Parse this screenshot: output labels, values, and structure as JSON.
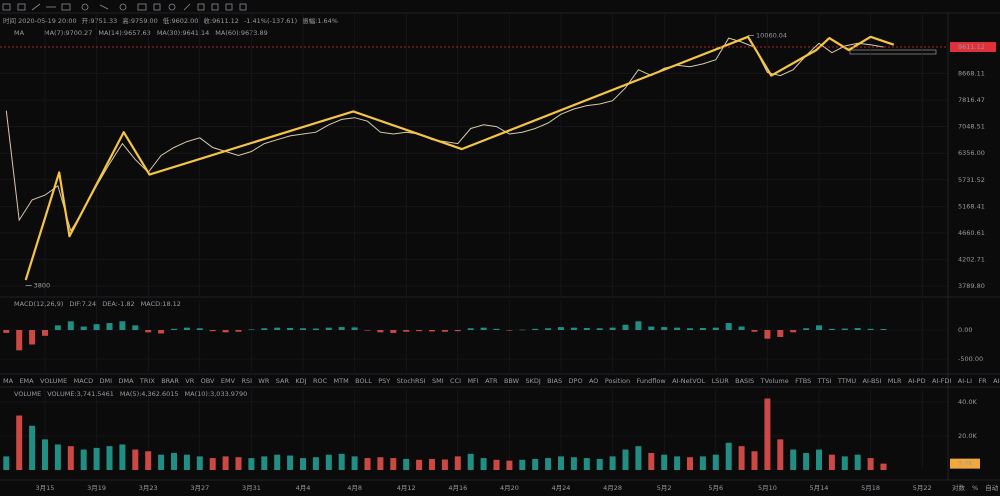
{
  "header": {
    "info": [
      "时间 2020-05-19 20:00",
      "开:9751.33",
      "高:9759.00",
      "低:9602.00",
      "收:9611.12",
      "-1.41%(-137.61)",
      "振幅:1.64%"
    ],
    "ma_label": "MA",
    "ma_values": [
      {
        "text": "MA(7):9700.27",
        "color": "#e8e8e8"
      },
      {
        "text": "MA(14):9657.63",
        "color": "#f2c94c"
      },
      {
        "text": "MA(30):9641.14",
        "color": "#e05a8a"
      },
      {
        "text": "MA(60):9673.89",
        "color": "#3fb8a8"
      }
    ]
  },
  "chart_data": [
    {
      "type": "line",
      "log": true,
      "grid": true,
      "color": "#d8c9a8",
      "categories": [
        null,
        null,
        null,
        "3月15",
        null,
        null,
        null,
        "3月19",
        null,
        null,
        null,
        "3月23",
        null,
        null,
        null,
        "3月27",
        null,
        null,
        null,
        "3月31",
        null,
        null,
        null,
        "4月4",
        null,
        null,
        null,
        "4月8",
        null,
        null,
        null,
        "4月12",
        null,
        null,
        null,
        "4月16",
        null,
        null,
        null,
        "4月20",
        null,
        null,
        null,
        "4月24",
        null,
        null,
        null,
        "4月28",
        null,
        null,
        null,
        "5月2",
        null,
        null,
        null,
        "5月6",
        null,
        null,
        null,
        "5月10",
        null,
        null,
        null,
        "5月14",
        null,
        null,
        null,
        "5月18",
        null,
        null,
        null,
        "5月22"
      ],
      "values": [
        7500,
        4900,
        5300,
        5400,
        5600,
        4700,
        5100,
        5600,
        6100,
        6600,
        6200,
        5900,
        6300,
        6500,
        6650,
        6750,
        6500,
        6400,
        6300,
        6400,
        6600,
        6700,
        6800,
        6850,
        6900,
        7100,
        7250,
        7300,
        7200,
        6900,
        6850,
        6900,
        6850,
        6700,
        6650,
        6600,
        7000,
        7100,
        7050,
        6850,
        6900,
        7000,
        7150,
        7400,
        7550,
        7650,
        7700,
        7800,
        8200,
        8800,
        8600,
        8850,
        8950,
        8900,
        9000,
        9150,
        9950,
        9800,
        9600,
        8700,
        8600,
        8800,
        9300,
        9750,
        9400,
        9650,
        9750,
        9700,
        9611.12,
        null,
        null,
        null
      ],
      "ylim": [
        3646,
        10930
      ],
      "yticks": [
        8668.11,
        7816.47,
        7048.51,
        {
          "value": 6356.0,
          "label": "6356.00"
        },
        5731.52,
        5168.41,
        4660.61,
        4202.71,
        {
          "value": 3789.8,
          "label": "3789.80"
        }
      ],
      "last_price": 9611.12,
      "last_color": "#e0303a",
      "annotations": [
        {
          "value": 10060.04,
          "x": 57.5
        },
        {
          "value": 3800,
          "x": 1.5
        }
      ],
      "zigzag": {
        "color": "#f5c542",
        "points": [
          {
            "x": 1.5,
            "y": 3880
          },
          {
            "x": 4.1,
            "y": 5900
          },
          {
            "x": 4.9,
            "y": 4600
          },
          {
            "x": 9.1,
            "y": 6900
          },
          {
            "x": 11.1,
            "y": 5850
          },
          {
            "x": 26.9,
            "y": 7480
          },
          {
            "x": 35.3,
            "y": 6460
          },
          {
            "x": 57.5,
            "y": 10000
          },
          {
            "x": 59.3,
            "y": 8600
          },
          {
            "x": 62.8,
            "y": 9500
          },
          {
            "x": 63.8,
            "y": 9950
          },
          {
            "x": 65.3,
            "y": 9500
          },
          {
            "x": 67,
            "y": 10000
          },
          {
            "x": 68.8,
            "y": 9700
          }
        ]
      }
    },
    {
      "type": "bar",
      "grid": true,
      "legend": [
        {
          "text": "MACD(12,26,9)",
          "color": "#9a9aa0"
        },
        {
          "text": "DIF:7.24",
          "color": "#e8e8e8"
        },
        {
          "text": "DEA:-1.82",
          "color": "#f2c94c"
        },
        {
          "text": "MACD:18.12",
          "color": "#e05a8a"
        }
      ],
      "values": [
        -50,
        -350,
        -250,
        -100,
        80,
        150,
        60,
        100,
        120,
        150,
        80,
        -40,
        -60,
        20,
        40,
        30,
        -20,
        -40,
        -30,
        10,
        30,
        40,
        35,
        30,
        25,
        40,
        50,
        45,
        -10,
        -40,
        -50,
        -30,
        -20,
        -25,
        -30,
        -20,
        30,
        40,
        20,
        -10,
        5,
        20,
        30,
        50,
        40,
        35,
        30,
        40,
        90,
        150,
        60,
        50,
        40,
        30,
        35,
        40,
        120,
        60,
        -30,
        -150,
        -120,
        -40,
        30,
        80,
        20,
        25,
        35,
        20,
        18.12,
        null,
        null,
        null
      ],
      "up_color": "#26a69a",
      "down_color": "#ef5350",
      "ylim": [
        -724,
        517
      ],
      "yticks": [
        {
          "value": 0,
          "label": "0.00"
        },
        {
          "value": -500,
          "label": "-500.00"
        }
      ]
    },
    {
      "type": "bar",
      "grid": true,
      "legend": [
        {
          "text": "VOLUME",
          "color": "#9a9aa0"
        },
        {
          "text": "VOLUME:3,741.5461",
          "color": "#e8e8e8"
        },
        {
          "text": "MA(5):4,362.6015",
          "color": "#e05a8a"
        },
        {
          "text": "MA(10):3,033.9790",
          "color": "#f2c94c"
        }
      ],
      "values": [
        8000,
        32000,
        26000,
        18000,
        15000,
        14000,
        12000,
        13000,
        14000,
        15000,
        12000,
        11000,
        9000,
        10000,
        9000,
        8000,
        7000,
        8000,
        7500,
        7000,
        8000,
        9000,
        8500,
        7000,
        7500,
        9000,
        9500,
        8000,
        7000,
        7500,
        7000,
        6500,
        6000,
        6500,
        6200,
        8000,
        9500,
        7000,
        6000,
        5500,
        6000,
        6500,
        7000,
        8000,
        7500,
        7000,
        6500,
        8000,
        12000,
        14000,
        10000,
        9000,
        8000,
        7500,
        8000,
        9000,
        16000,
        14000,
        11000,
        42000,
        18000,
        12000,
        10000,
        12000,
        9000,
        8000,
        9000,
        7000,
        3741.5461,
        null,
        null,
        null
      ],
      "up_color": "#26a69a",
      "down_color": "#ef5350",
      "last_value_label": "3.7K",
      "last_color": "#f2a93b",
      "ylim": [
        0,
        47000
      ],
      "yticks": [
        {
          "value": 40000,
          "label": "40.0K"
        },
        {
          "value": 20000,
          "label": "20.0K"
        }
      ]
    }
  ],
  "tabs": [
    "MA",
    "EMA",
    "VOLUME",
    "MACD",
    "DMI",
    "DMA",
    "TRIX",
    "BRAR",
    "VR",
    "OBV",
    "EMV",
    "RSI",
    "WR",
    "SAR",
    "KDJ",
    "ROC",
    "MTM",
    "BOLL",
    "PSY",
    "StochRSI",
    "SMI",
    "CCI",
    "MFI",
    "ATR",
    "BBW",
    "SKDJ",
    "BIAS",
    "DPO",
    "AO",
    "Position",
    "Fundflow",
    "AI-NetVOL",
    "LSUR",
    "BASIS",
    "TVolume",
    "FTBS",
    "TTSI",
    "TTMU",
    "AI-BSI",
    "MLR",
    "AI-PD",
    "AI-FDI",
    "AI-LI",
    "FR",
    "AI-BST"
  ],
  "active_tabs": [
    2,
    3
  ],
  "footer": [
    "对数",
    "%",
    "自动"
  ]
}
